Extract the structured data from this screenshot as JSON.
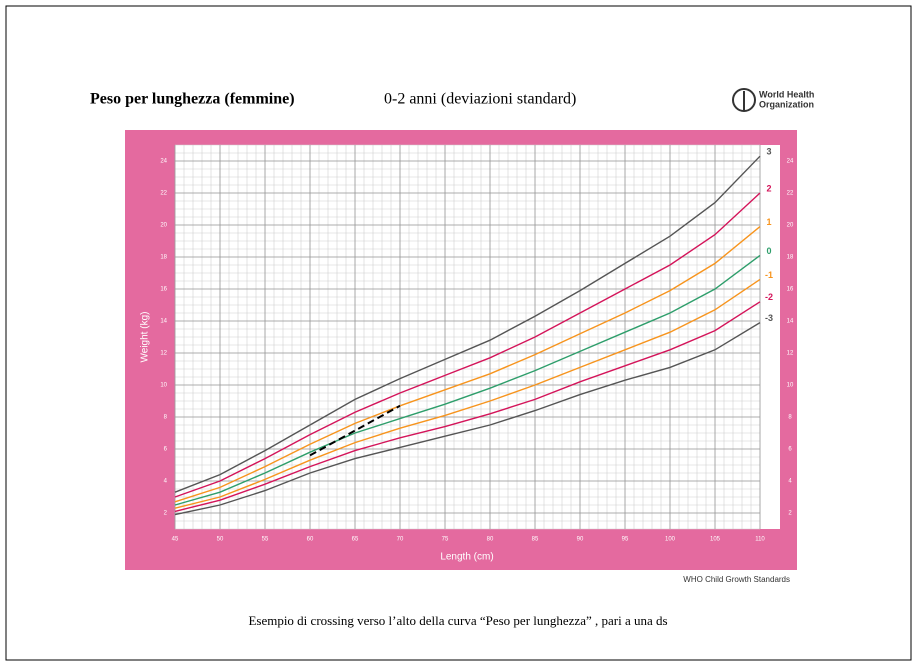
{
  "chart_data": {
    "type": "line",
    "title": "Peso per lunghezza (femmine)",
    "subtitle": "0-2 anni (deviazioni standard)",
    "logo": [
      "World Health",
      "Organization"
    ],
    "x_label": "Length (cm)",
    "y_label": "Weight (kg)",
    "source": "WHO Child Growth Standards",
    "caption": "Esempio di crossing verso l’alto della curva “Peso per lunghezza” , pari a una ds",
    "x": [
      45,
      50,
      55,
      60,
      65,
      70,
      75,
      80,
      85,
      90,
      95,
      100,
      105,
      110
    ],
    "xlim": [
      45,
      110
    ],
    "xticks": [
      45,
      50,
      55,
      60,
      65,
      70,
      75,
      80,
      85,
      90,
      95,
      100,
      105,
      110
    ],
    "ylim": [
      1,
      25
    ],
    "yticks": [
      2,
      4,
      6,
      8,
      10,
      12,
      14,
      16,
      18,
      20,
      22,
      24
    ],
    "grid": true,
    "series": [
      {
        "name": "3",
        "color": "#555555",
        "values": [
          3.3,
          4.4,
          5.9,
          7.5,
          9.1,
          10.4,
          11.6,
          12.8,
          14.3,
          15.9,
          17.6,
          19.3,
          21.4,
          24.3
        ]
      },
      {
        "name": "2",
        "color": "#d4145a",
        "values": [
          3.0,
          4.0,
          5.4,
          6.9,
          8.3,
          9.5,
          10.6,
          11.7,
          13.0,
          14.5,
          16.0,
          17.5,
          19.4,
          22.0
        ]
      },
      {
        "name": "1",
        "color": "#f7941d",
        "values": [
          2.7,
          3.6,
          4.9,
          6.3,
          7.6,
          8.7,
          9.7,
          10.7,
          11.9,
          13.2,
          14.5,
          15.9,
          17.6,
          19.9
        ]
      },
      {
        "name": "0",
        "color": "#2e9e6b",
        "values": [
          2.5,
          3.3,
          4.5,
          5.8,
          7.0,
          7.9,
          8.8,
          9.8,
          10.9,
          12.1,
          13.3,
          14.5,
          16.0,
          18.1
        ]
      },
      {
        "name": "-1",
        "color": "#f7941d",
        "values": [
          2.3,
          3.0,
          4.1,
          5.3,
          6.4,
          7.3,
          8.1,
          9.0,
          10.0,
          11.1,
          12.2,
          13.3,
          14.7,
          16.6
        ]
      },
      {
        "name": "-2",
        "color": "#d4145a",
        "values": [
          2.1,
          2.8,
          3.8,
          4.9,
          5.9,
          6.7,
          7.4,
          8.2,
          9.1,
          10.2,
          11.2,
          12.2,
          13.4,
          15.2
        ]
      },
      {
        "name": "-3",
        "color": "#555555",
        "values": [
          1.9,
          2.5,
          3.4,
          4.5,
          5.4,
          6.1,
          6.8,
          7.5,
          8.4,
          9.4,
          10.3,
          11.1,
          12.2,
          13.9
        ]
      }
    ],
    "crossing_line": {
      "x": [
        60,
        70
      ],
      "values": [
        5.6,
        8.7
      ],
      "color": "#000000"
    }
  }
}
